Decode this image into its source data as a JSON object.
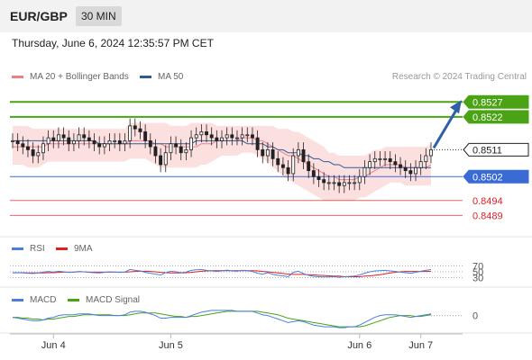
{
  "header": {
    "symbol": "EUR/GBP",
    "timeframe": "30 MIN"
  },
  "timestamp": "Thursday, June 6, 2024 12:35:57 PM CET",
  "legend": {
    "ma20_label": "MA 20 + Bollinger Bands",
    "ma20_color": "#f08080",
    "ma50_label": "MA 50",
    "ma50_color": "#2e5a96",
    "credit": "Research © 2024 Trading Central"
  },
  "chart_data": [
    {
      "type": "candlestick",
      "title": "EUR/GBP 30 MIN",
      "x_ticks": [
        "Jun 4",
        "Jun 5",
        "Jun 6",
        "Jun 7"
      ],
      "ylim": [
        0.8484,
        0.8531
      ],
      "last_price": "0.8511",
      "levels": [
        {
          "label": "0.8527",
          "value": 0.8527,
          "kind": "resistance",
          "color": "#4aa314"
        },
        {
          "label": "0.8522",
          "value": 0.8522,
          "kind": "resistance",
          "color": "#4aa314"
        },
        {
          "label": "0.8511",
          "value": 0.8511,
          "kind": "last",
          "color": "#222222"
        },
        {
          "label": "0.8502",
          "value": 0.8502,
          "kind": "pivot",
          "color": "#3a6ad4"
        },
        {
          "label": "0.8494",
          "value": 0.8494,
          "kind": "support",
          "color": "#e0202a"
        },
        {
          "label": "0.8489",
          "value": 0.8489,
          "kind": "support",
          "color": "#e0202a"
        }
      ],
      "close": [
        0.8514,
        0.8513,
        0.8512,
        0.8511,
        0.8509,
        0.851,
        0.8513,
        0.8515,
        0.8514,
        0.8516,
        0.8515,
        0.8513,
        0.8514,
        0.8516,
        0.8515,
        0.8514,
        0.8513,
        0.8512,
        0.8513,
        0.8514,
        0.8514,
        0.8513,
        0.8514,
        0.8519,
        0.8518,
        0.8517,
        0.8514,
        0.8512,
        0.8509,
        0.8506,
        0.851,
        0.8513,
        0.8512,
        0.851,
        0.8511,
        0.8515,
        0.8516,
        0.8517,
        0.8516,
        0.8515,
        0.8514,
        0.8515,
        0.8516,
        0.8515,
        0.8515,
        0.8516,
        0.8516,
        0.8515,
        0.8511,
        0.8509,
        0.8511,
        0.8508,
        0.8506,
        0.8505,
        0.8503,
        0.8509,
        0.8511,
        0.8507,
        0.8504,
        0.8502,
        0.8501,
        0.85,
        0.85,
        0.85,
        0.8499,
        0.85,
        0.85,
        0.85,
        0.8502,
        0.8505,
        0.8507,
        0.8508,
        0.8508,
        0.8508,
        0.8507,
        0.8506,
        0.8505,
        0.8504,
        0.8503,
        0.8505,
        0.8507,
        0.8509,
        0.8511
      ],
      "ma20": [
        0.8512,
        0.8512,
        0.8512,
        0.8512,
        0.8512,
        0.8512,
        0.8512,
        0.8513,
        0.8513,
        0.8513,
        0.8513,
        0.8513,
        0.8513,
        0.8513,
        0.8513,
        0.8513,
        0.8513,
        0.8513,
        0.8513,
        0.8513,
        0.8513,
        0.8513,
        0.8513,
        0.8514,
        0.8514,
        0.8514,
        0.8514,
        0.8514,
        0.8513,
        0.8513,
        0.8512,
        0.8512,
        0.8512,
        0.8512,
        0.8512,
        0.8512,
        0.8512,
        0.8513,
        0.8513,
        0.8513,
        0.8514,
        0.8514,
        0.8514,
        0.8514,
        0.8514,
        0.8515,
        0.8515,
        0.8515,
        0.8514,
        0.8514,
        0.8513,
        0.8512,
        0.8511,
        0.851,
        0.8509,
        0.8509,
        0.8508,
        0.8507,
        0.8506,
        0.8505,
        0.8504,
        0.8503,
        0.8502,
        0.8502,
        0.8501,
        0.8501,
        0.8501,
        0.8501,
        0.8502,
        0.8502,
        0.8503,
        0.8504,
        0.8505,
        0.8506,
        0.8506,
        0.8506,
        0.8506,
        0.8505,
        0.8505,
        0.8505,
        0.8505,
        0.8505,
        0.8506
      ],
      "ma50": [
        0.8514,
        0.8514,
        0.8514,
        0.8514,
        0.8514,
        0.8514,
        0.8514,
        0.8514,
        0.8514,
        0.8514,
        0.8514,
        0.8514,
        0.8514,
        0.8514,
        0.8514,
        0.8514,
        0.8514,
        0.8513,
        0.8513,
        0.8513,
        0.8513,
        0.8513,
        0.8513,
        0.8513,
        0.8513,
        0.8513,
        0.8513,
        0.8513,
        0.8513,
        0.8513,
        0.8513,
        0.8513,
        0.8513,
        0.8513,
        0.8513,
        0.8513,
        0.8514,
        0.8514,
        0.8514,
        0.8514,
        0.8514,
        0.8514,
        0.8514,
        0.8514,
        0.8514,
        0.8514,
        0.8513,
        0.8513,
        0.8513,
        0.8513,
        0.8512,
        0.8512,
        0.8511,
        0.8511,
        0.851,
        0.851,
        0.851,
        0.8509,
        0.8509,
        0.8508,
        0.8508,
        0.8507,
        0.8507,
        0.8506,
        0.8506,
        0.8505,
        0.8505,
        0.8505,
        0.8505,
        0.8505,
        0.8505,
        0.8505,
        0.8505,
        0.8505,
        0.8505,
        0.8505,
        0.8505,
        0.8505,
        0.8505,
        0.8505,
        0.8505,
        0.8505,
        0.8505
      ],
      "bb_upper": [
        0.8519,
        0.8519,
        0.8519,
        0.8519,
        0.8518,
        0.8518,
        0.8518,
        0.8518,
        0.8518,
        0.8518,
        0.8518,
        0.8518,
        0.8518,
        0.8518,
        0.8518,
        0.8518,
        0.8518,
        0.8518,
        0.8518,
        0.8518,
        0.8518,
        0.8518,
        0.8518,
        0.852,
        0.852,
        0.852,
        0.852,
        0.852,
        0.852,
        0.852,
        0.852,
        0.8519,
        0.8519,
        0.8519,
        0.8519,
        0.852,
        0.852,
        0.852,
        0.852,
        0.852,
        0.8519,
        0.8519,
        0.8519,
        0.8519,
        0.8519,
        0.8519,
        0.8519,
        0.8519,
        0.8519,
        0.8519,
        0.8519,
        0.8519,
        0.8518,
        0.8518,
        0.8518,
        0.8517,
        0.8517,
        0.8516,
        0.8515,
        0.8514,
        0.8513,
        0.8512,
        0.851,
        0.851,
        0.8509,
        0.8509,
        0.8509,
        0.8509,
        0.8509,
        0.8509,
        0.851,
        0.8511,
        0.8511,
        0.8512,
        0.8512,
        0.8512,
        0.8512,
        0.8512,
        0.8512,
        0.8512,
        0.8512,
        0.8512,
        0.8513
      ],
      "bb_lower": [
        0.8506,
        0.8506,
        0.8506,
        0.8505,
        0.8505,
        0.8505,
        0.8506,
        0.8507,
        0.8507,
        0.8507,
        0.8507,
        0.8507,
        0.8507,
        0.8507,
        0.8507,
        0.8507,
        0.8507,
        0.8507,
        0.8507,
        0.8507,
        0.8507,
        0.8507,
        0.8507,
        0.8508,
        0.8508,
        0.8508,
        0.8508,
        0.8507,
        0.8506,
        0.8505,
        0.8505,
        0.8505,
        0.8505,
        0.8505,
        0.8505,
        0.8505,
        0.8505,
        0.8506,
        0.8506,
        0.8507,
        0.8508,
        0.8509,
        0.8509,
        0.8509,
        0.8509,
        0.851,
        0.851,
        0.851,
        0.8509,
        0.8508,
        0.8507,
        0.8505,
        0.8504,
        0.8502,
        0.8501,
        0.85,
        0.8499,
        0.8498,
        0.8497,
        0.8496,
        0.8495,
        0.8494,
        0.8494,
        0.8494,
        0.8494,
        0.8494,
        0.8494,
        0.8494,
        0.8495,
        0.8495,
        0.8496,
        0.8497,
        0.8498,
        0.8499,
        0.85,
        0.85,
        0.85,
        0.8499,
        0.8499,
        0.8499,
        0.8499,
        0.8499,
        0.8499
      ],
      "projection": {
        "from": 0.8511,
        "to": 0.8527
      }
    },
    {
      "type": "line",
      "title": "RSI",
      "y_ticks": [
        "70",
        "50",
        "30"
      ],
      "ylim": [
        0,
        100
      ],
      "series": [
        {
          "name": "RSI",
          "color": "#4a7ee0",
          "values": [
            46,
            47,
            46,
            45,
            44,
            46,
            49,
            51,
            49,
            52,
            50,
            48,
            49,
            51,
            50,
            48,
            47,
            46,
            48,
            50,
            49,
            48,
            49,
            58,
            55,
            53,
            48,
            45,
            42,
            39,
            47,
            52,
            50,
            47,
            49,
            55,
            57,
            58,
            55,
            53,
            51,
            53,
            56,
            53,
            52,
            55,
            54,
            51,
            45,
            42,
            47,
            41,
            38,
            36,
            33,
            48,
            52,
            44,
            38,
            34,
            33,
            32,
            32,
            33,
            31,
            33,
            34,
            35,
            39,
            45,
            50,
            53,
            54,
            55,
            53,
            51,
            49,
            47,
            45,
            48,
            52,
            55,
            58
          ]
        },
        {
          "name": "9MA",
          "color": "#e02020",
          "values": [
            47,
            47,
            47,
            46,
            46,
            46,
            46,
            47,
            47,
            48,
            49,
            49,
            49,
            50,
            50,
            49,
            49,
            49,
            49,
            49,
            49,
            49,
            49,
            50,
            51,
            52,
            52,
            51,
            50,
            48,
            47,
            46,
            46,
            46,
            47,
            48,
            50,
            52,
            53,
            54,
            54,
            54,
            54,
            54,
            54,
            54,
            54,
            54,
            53,
            51,
            50,
            48,
            46,
            44,
            42,
            41,
            41,
            41,
            40,
            39,
            38,
            37,
            36,
            35,
            35,
            33,
            33,
            33,
            33,
            35,
            36,
            38,
            40,
            43,
            46,
            48,
            50,
            51,
            51,
            51,
            51,
            51,
            52
          ]
        }
      ]
    },
    {
      "type": "line",
      "title": "MACD",
      "y_ticks": [
        "0"
      ],
      "series": [
        {
          "name": "MACD",
          "color": "#4a7ee0",
          "values": [
            -0.2,
            -0.3,
            -0.4,
            -0.5,
            -0.6,
            -0.6,
            -0.5,
            -0.3,
            -0.2,
            0.0,
            0.1,
            0.1,
            0.1,
            0.2,
            0.2,
            0.2,
            0.1,
            0.0,
            0.0,
            0.0,
            0.0,
            0.0,
            0.1,
            0.4,
            0.5,
            0.5,
            0.4,
            0.2,
            0.0,
            -0.3,
            -0.3,
            -0.2,
            -0.2,
            -0.2,
            -0.2,
            0.0,
            0.2,
            0.4,
            0.5,
            0.6,
            0.6,
            0.6,
            0.6,
            0.6,
            0.5,
            0.5,
            0.5,
            0.5,
            0.3,
            0.1,
            0.0,
            -0.2,
            -0.4,
            -0.6,
            -0.8,
            -0.7,
            -0.6,
            -0.7,
            -0.9,
            -1.1,
            -1.2,
            -1.3,
            -1.3,
            -1.3,
            -1.4,
            -1.4,
            -1.3,
            -1.3,
            -1.1,
            -0.8,
            -0.5,
            -0.2,
            0.0,
            0.1,
            0.1,
            0.1,
            0.0,
            -0.1,
            -0.2,
            -0.1,
            0.0,
            0.1,
            0.2
          ]
        },
        {
          "name": "MACD Signal",
          "color": "#4aa314",
          "values": [
            -0.2,
            -0.2,
            -0.3,
            -0.3,
            -0.4,
            -0.4,
            -0.5,
            -0.4,
            -0.4,
            -0.3,
            -0.2,
            -0.1,
            -0.1,
            0.0,
            0.1,
            0.1,
            0.1,
            0.1,
            0.1,
            0.1,
            0.0,
            0.0,
            0.0,
            0.1,
            0.2,
            0.3,
            0.3,
            0.3,
            0.3,
            0.2,
            0.1,
            0.0,
            -0.1,
            -0.1,
            -0.2,
            -0.1,
            -0.1,
            0.0,
            0.1,
            0.2,
            0.3,
            0.4,
            0.5,
            0.5,
            0.5,
            0.5,
            0.5,
            0.5,
            0.5,
            0.4,
            0.3,
            0.2,
            0.1,
            -0.1,
            -0.3,
            -0.4,
            -0.5,
            -0.6,
            -0.7,
            -0.8,
            -0.9,
            -1.0,
            -1.1,
            -1.2,
            -1.3,
            -1.3,
            -1.3,
            -1.3,
            -1.3,
            -1.2,
            -1.0,
            -0.8,
            -0.6,
            -0.4,
            -0.2,
            -0.1,
            0.0,
            0.0,
            0.0,
            -0.1,
            -0.1,
            0.0,
            0.1
          ]
        }
      ]
    }
  ],
  "rsi_legend": {
    "rsi_label": "RSI",
    "rsi_color": "#4a7ee0",
    "ma_label": "9MA",
    "ma_color": "#e02020"
  },
  "macd_legend": {
    "macd_label": "MACD",
    "macd_color": "#4a7ee0",
    "signal_label": "MACD Signal",
    "signal_color": "#4aa314"
  }
}
